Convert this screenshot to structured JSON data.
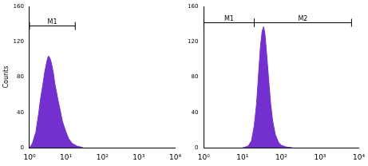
{
  "chart_data": [
    {
      "type": "area",
      "y_label": "Counts",
      "color": "#7430cf",
      "log": "x",
      "grid": false,
      "xlim": [
        1,
        10000
      ],
      "xticks": [
        {
          "value": 1,
          "label": "10⁰"
        },
        {
          "value": 10,
          "label": "10¹"
        },
        {
          "value": 100,
          "label": "10²"
        },
        {
          "value": 1000,
          "label": "10³"
        },
        {
          "value": 10000,
          "label": "10⁴"
        }
      ],
      "ylim": [
        0,
        160
      ],
      "yticks": [
        0,
        40,
        80,
        120,
        160
      ],
      "x": [
        1,
        1.2,
        1.5,
        1.8,
        2,
        2.3,
        2.6,
        3,
        3.3,
        3.6,
        4,
        4.5,
        5,
        6,
        7,
        8,
        10,
        12,
        15,
        20,
        25,
        30
      ],
      "values": [
        0,
        5,
        18,
        40,
        55,
        70,
        85,
        98,
        104,
        102,
        96,
        85,
        72,
        55,
        42,
        30,
        18,
        10,
        5,
        2,
        1,
        0
      ],
      "gates": [
        {
          "label": "M1",
          "range": [
            1,
            18
          ],
          "y": 138
        }
      ]
    },
    {
      "type": "area",
      "color": "#7430cf",
      "log": "x",
      "grid": false,
      "xlim": [
        1,
        10000
      ],
      "xticks": [
        {
          "value": 1,
          "label": "10⁰"
        },
        {
          "value": 10,
          "label": "10¹"
        },
        {
          "value": 100,
          "label": "10²"
        },
        {
          "value": 1000,
          "label": "10³"
        },
        {
          "value": 10000,
          "label": "10⁴"
        }
      ],
      "ylim": [
        0,
        160
      ],
      "yticks": [
        0,
        40,
        80,
        120,
        160
      ],
      "x": [
        10,
        14,
        17,
        20,
        23,
        26,
        29,
        32,
        35,
        38,
        42,
        47,
        53,
        60,
        70,
        85,
        100,
        130,
        200
      ],
      "values": [
        0,
        2,
        8,
        25,
        50,
        85,
        115,
        132,
        137,
        128,
        105,
        78,
        50,
        30,
        15,
        6,
        3,
        1,
        0
      ],
      "gates": [
        {
          "label": "M1",
          "range": [
            1,
            20
          ],
          "y": 142
        },
        {
          "label": "M2",
          "range": [
            20,
            6500
          ],
          "y": 142
        }
      ]
    }
  ]
}
